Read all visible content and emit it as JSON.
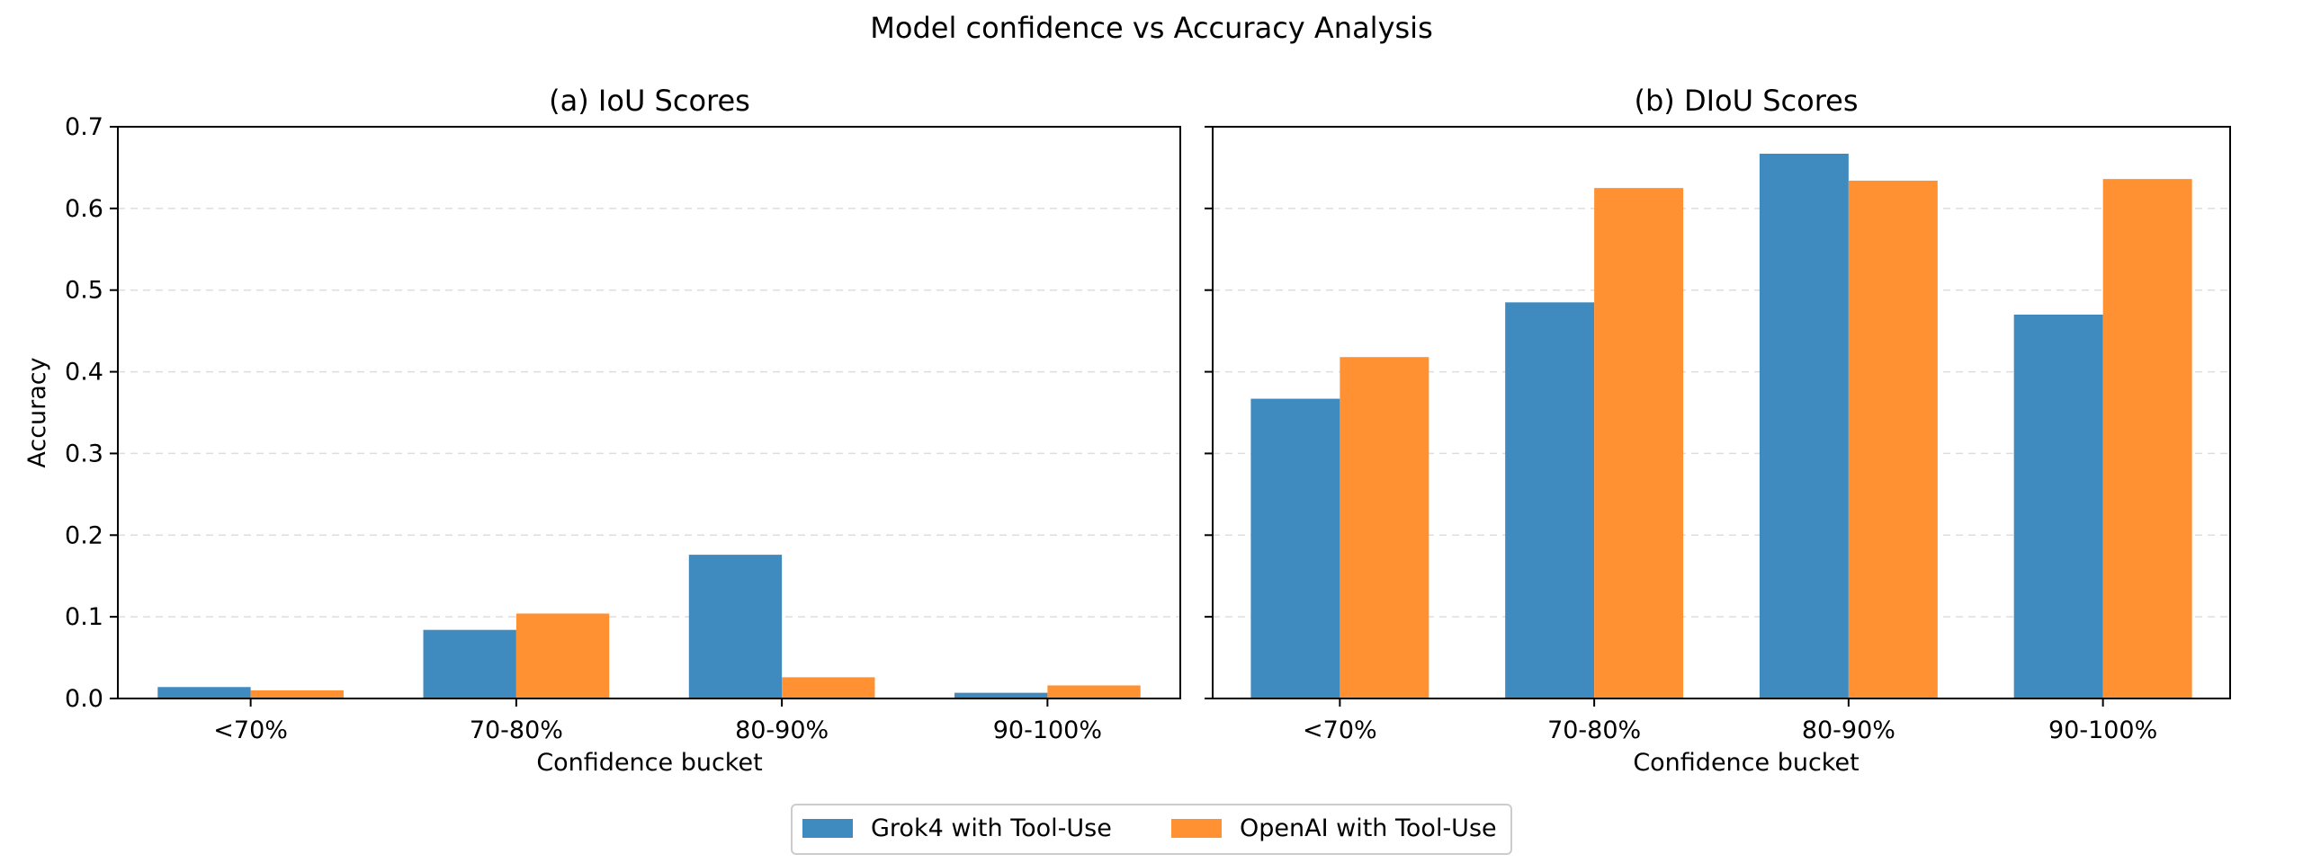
{
  "figure": {
    "title": "Model confidence vs Accuracy Analysis"
  },
  "colors": {
    "grok": "#3f8bc0",
    "openai": "#ff9132",
    "grid": "#dddddd",
    "axis": "#000000"
  },
  "chart_data": [
    {
      "type": "bar",
      "title": "(a) IoU Scores",
      "xlabel": "Confidence bucket",
      "ylabel": "Accuracy",
      "categories": [
        "<70%",
        "70-80%",
        "80-90%",
        "90-100%"
      ],
      "ylim": [
        0,
        0.7
      ],
      "yticks": [
        "0.0",
        "0.1",
        "0.2",
        "0.3",
        "0.4",
        "0.5",
        "0.6",
        "0.7"
      ],
      "grid": "y, dashed",
      "series": [
        {
          "name": "Grok4 with Tool-Use",
          "values": [
            0.014,
            0.084,
            0.176,
            0.007
          ]
        },
        {
          "name": "OpenAI with Tool-Use",
          "values": [
            0.01,
            0.104,
            0.026,
            0.016
          ]
        }
      ]
    },
    {
      "type": "bar",
      "title": "(b) DIoU Scores",
      "xlabel": "Confidence bucket",
      "ylabel": "",
      "categories": [
        "<70%",
        "70-80%",
        "80-90%",
        "90-100%"
      ],
      "ylim": [
        0,
        0.7
      ],
      "grid": "y, dashed",
      "series": [
        {
          "name": "Grok4 with Tool-Use",
          "values": [
            0.367,
            0.485,
            0.667,
            0.47
          ]
        },
        {
          "name": "OpenAI with Tool-Use",
          "values": [
            0.418,
            0.625,
            0.634,
            0.636
          ]
        }
      ]
    }
  ],
  "legend": {
    "placement": "bottom-center",
    "items": [
      "Grok4 with Tool-Use",
      "OpenAI with Tool-Use"
    ]
  }
}
